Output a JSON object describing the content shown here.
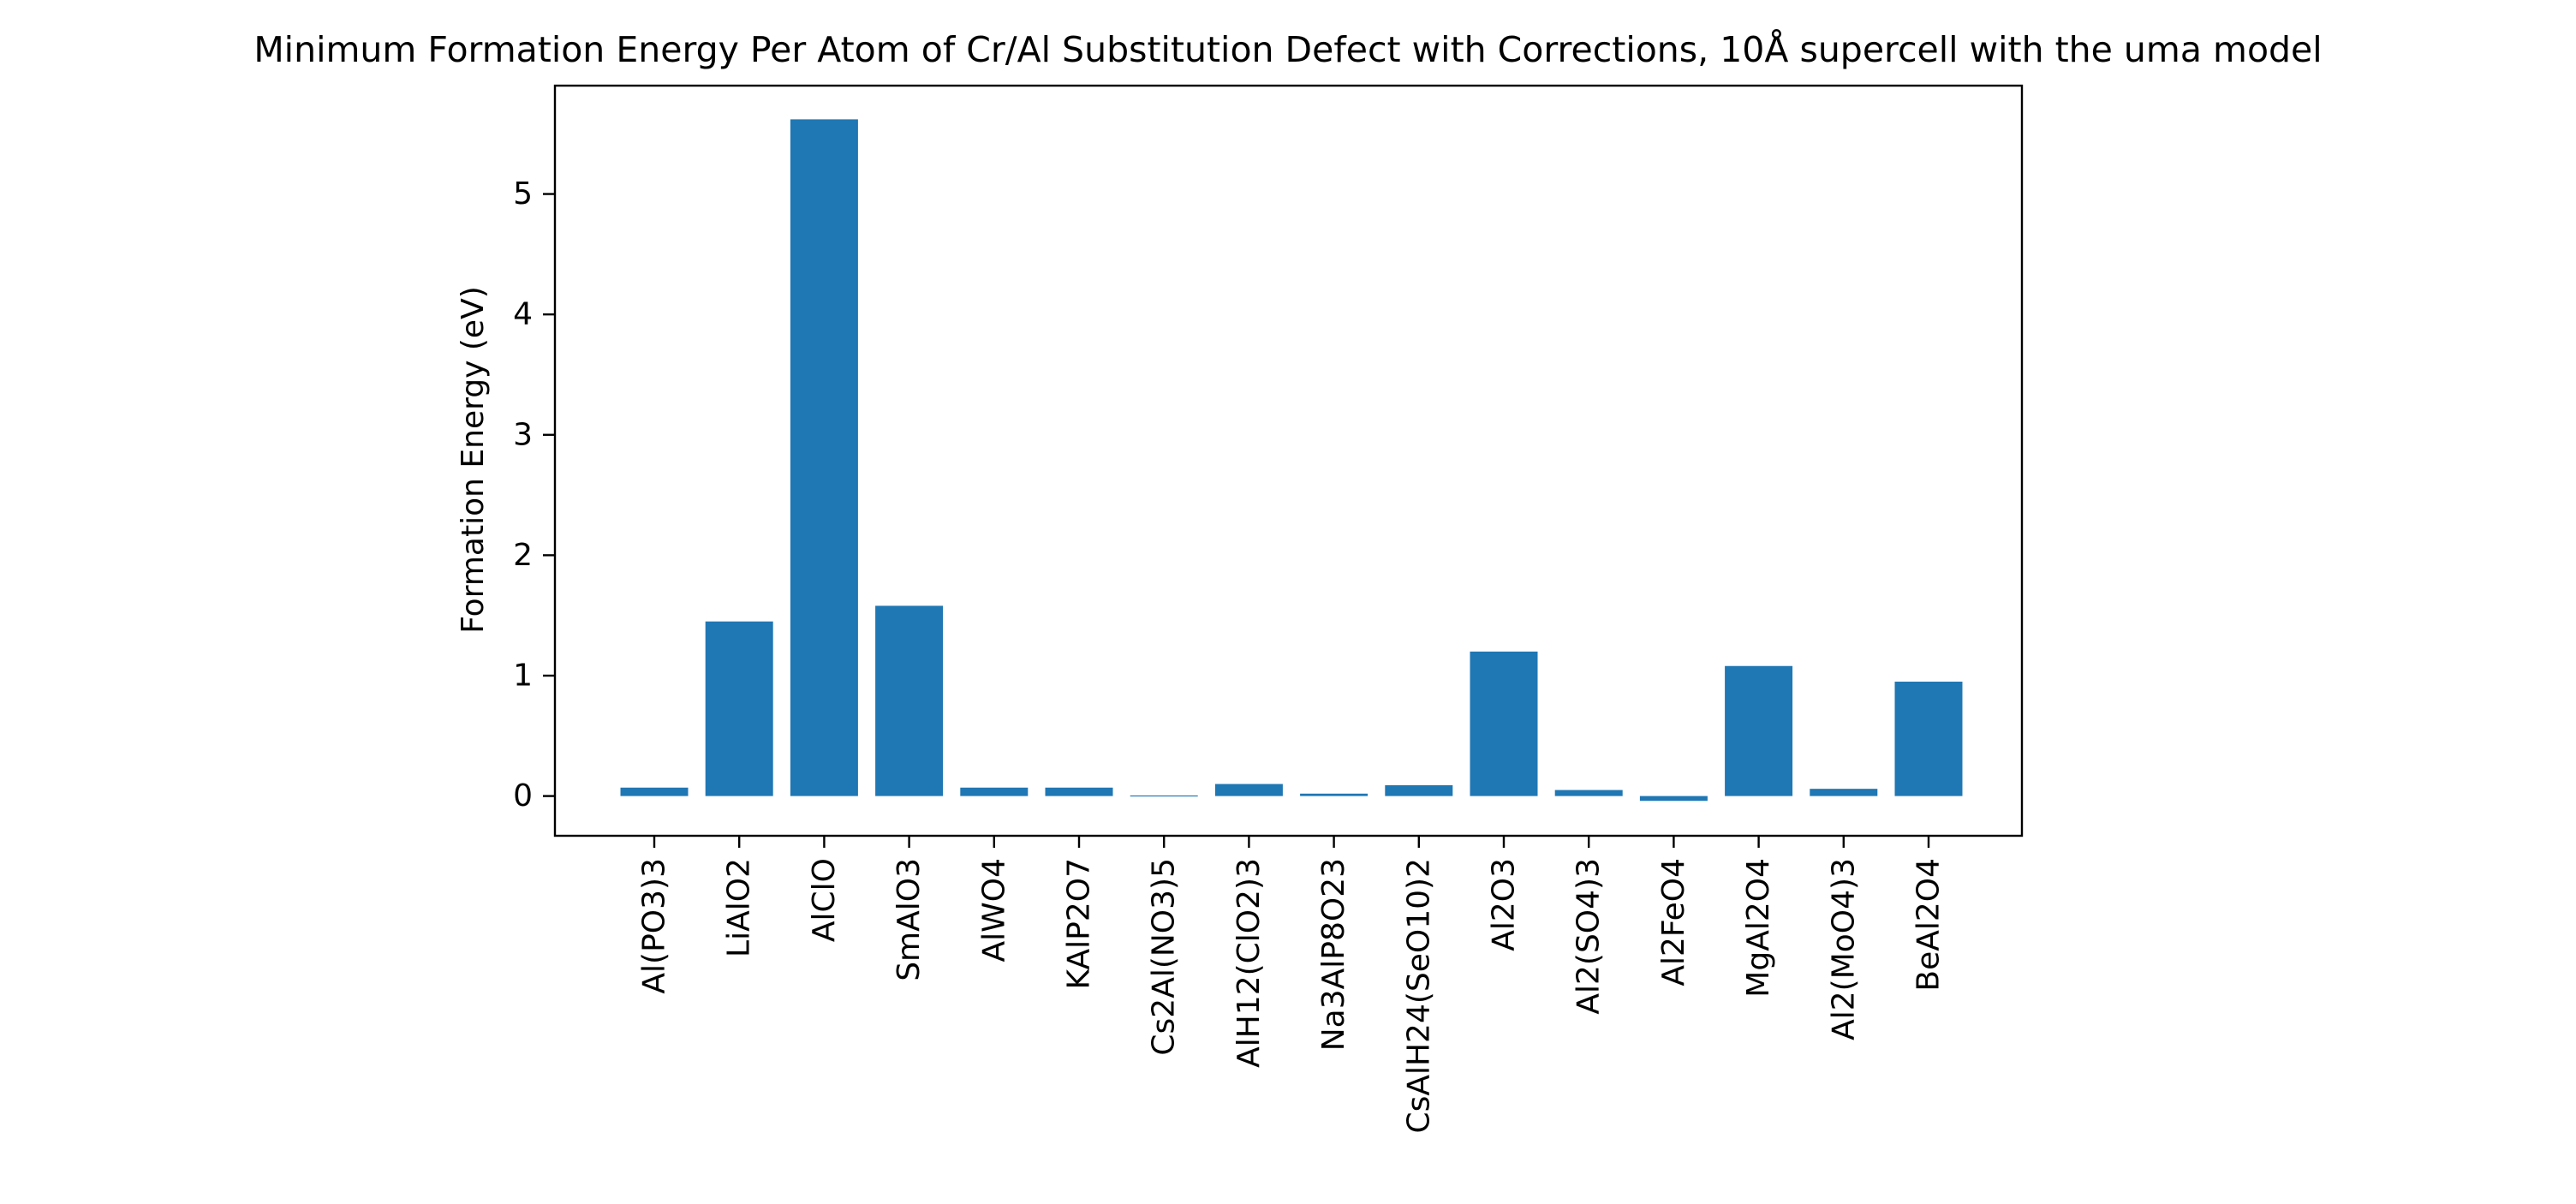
{
  "chart_data": {
    "type": "bar",
    "title": "Minimum Formation Energy Per Atom of Cr/Al Substitution Defect with Corrections, 10Å supercell with the uma model",
    "xlabel": "",
    "ylabel": "Formation Energy (eV)",
    "categories": [
      "Al(PO3)3",
      "LiAlO2",
      "AlClO",
      "SmAlO3",
      "AlWO4",
      "KAlP2O7",
      "Cs2Al(NO3)5",
      "AlH12(ClO2)3",
      "Na3AlP8O23",
      "CsAlH24(SeO10)2",
      "Al2O3",
      "Al2(SO4)3",
      "Al2FeO4",
      "MgAl2O4",
      "Al2(MoO4)3",
      "BeAl2O4"
    ],
    "values": [
      0.07,
      1.45,
      5.62,
      1.58,
      0.07,
      0.07,
      0.005,
      0.1,
      0.02,
      0.09,
      1.2,
      0.05,
      -0.04,
      1.08,
      0.06,
      0.95
    ],
    "ylim": [
      -0.33,
      5.9
    ],
    "yticks": [
      "0",
      "1",
      "2",
      "3",
      "4",
      "5"
    ],
    "bar_color": "#1f77b4",
    "grid": false,
    "legend": "none"
  }
}
